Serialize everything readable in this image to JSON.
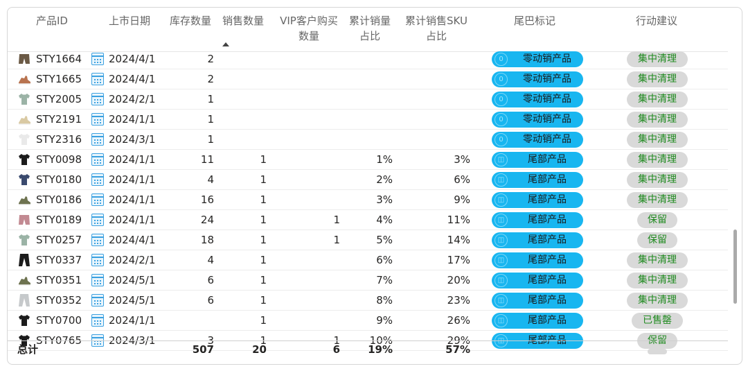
{
  "header": {
    "product_id": "产品ID",
    "launch_date": "上市日期",
    "stock_qty": "库存数量",
    "sales_qty": "销售数量",
    "vip_qty_line1": "VIP客户购买",
    "vip_qty_line2": "数量",
    "cum_sales_line1": "累计销量",
    "cum_sales_line2": "占比",
    "cum_sku_line1": "累计销售SKU",
    "cum_sku_line2": "占比",
    "tail_tag": "尾巴标记",
    "action": "行动建议"
  },
  "rows": [
    {
      "thumb": "shorts-brown",
      "id": "STY1664",
      "date": "2024/4/1",
      "stock": "2",
      "sales": "",
      "vip": "",
      "cum_sales": "",
      "cum_sku": "",
      "tag_icon": "0",
      "tag": "零动销产品",
      "action": "集中清理"
    },
    {
      "thumb": "shoe-red",
      "id": "STY1665",
      "date": "2024/4/1",
      "stock": "2",
      "sales": "",
      "vip": "",
      "cum_sales": "",
      "cum_sku": "",
      "tag_icon": "0",
      "tag": "零动销产品",
      "action": "集中清理"
    },
    {
      "thumb": "tshirt-sage",
      "id": "STY2005",
      "date": "2024/2/1",
      "stock": "1",
      "sales": "",
      "vip": "",
      "cum_sales": "",
      "cum_sku": "",
      "tag_icon": "0",
      "tag": "零动销产品",
      "action": "集中清理"
    },
    {
      "thumb": "shoe-beige",
      "id": "STY2191",
      "date": "2024/1/1",
      "stock": "1",
      "sales": "",
      "vip": "",
      "cum_sales": "",
      "cum_sku": "",
      "tag_icon": "0",
      "tag": "零动销产品",
      "action": "集中清理"
    },
    {
      "thumb": "tshirt-white",
      "id": "STY2316",
      "date": "2024/3/1",
      "stock": "1",
      "sales": "",
      "vip": "",
      "cum_sales": "",
      "cum_sku": "",
      "tag_icon": "0",
      "tag": "零动销产品",
      "action": "集中清理"
    },
    {
      "thumb": "tshirt-black",
      "id": "STY0098",
      "date": "2024/1/1",
      "stock": "11",
      "sales": "1",
      "vip": "",
      "cum_sales": "1%",
      "cum_sku": "3%",
      "tag_icon": "◫",
      "tag": "尾部产品",
      "action": "集中清理"
    },
    {
      "thumb": "tshirt-navy",
      "id": "STY0180",
      "date": "2024/1/1",
      "stock": "4",
      "sales": "1",
      "vip": "",
      "cum_sales": "2%",
      "cum_sku": "6%",
      "tag_icon": "◫",
      "tag": "尾部产品",
      "action": "集中清理"
    },
    {
      "thumb": "shoe-olive",
      "id": "STY0186",
      "date": "2024/1/1",
      "stock": "16",
      "sales": "1",
      "vip": "",
      "cum_sales": "3%",
      "cum_sku": "9%",
      "tag_icon": "◫",
      "tag": "尾部产品",
      "action": "集中清理"
    },
    {
      "thumb": "shorts-pink",
      "id": "STY0189",
      "date": "2024/1/1",
      "stock": "24",
      "sales": "1",
      "vip": "1",
      "cum_sales": "4%",
      "cum_sku": "11%",
      "tag_icon": "◫",
      "tag": "尾部产品",
      "action": "保留"
    },
    {
      "thumb": "tshirt-sage",
      "id": "STY0257",
      "date": "2024/4/1",
      "stock": "18",
      "sales": "1",
      "vip": "1",
      "cum_sales": "5%",
      "cum_sku": "14%",
      "tag_icon": "◫",
      "tag": "尾部产品",
      "action": "保留"
    },
    {
      "thumb": "pants-black",
      "id": "STY0337",
      "date": "2024/2/1",
      "stock": "4",
      "sales": "1",
      "vip": "",
      "cum_sales": "6%",
      "cum_sku": "17%",
      "tag_icon": "◫",
      "tag": "尾部产品",
      "action": "集中清理"
    },
    {
      "thumb": "shoe-olive",
      "id": "STY0351",
      "date": "2024/5/1",
      "stock": "6",
      "sales": "1",
      "vip": "",
      "cum_sales": "7%",
      "cum_sku": "20%",
      "tag_icon": "◫",
      "tag": "尾部产品",
      "action": "集中清理"
    },
    {
      "thumb": "pants-grey",
      "id": "STY0352",
      "date": "2024/5/1",
      "stock": "6",
      "sales": "1",
      "vip": "",
      "cum_sales": "8%",
      "cum_sku": "23%",
      "tag_icon": "◫",
      "tag": "尾部产品",
      "action": "集中清理"
    },
    {
      "thumb": "tshirt-black",
      "id": "STY0700",
      "date": "2024/1/1",
      "stock": "",
      "sales": "1",
      "vip": "",
      "cum_sales": "9%",
      "cum_sku": "26%",
      "tag_icon": "◫",
      "tag": "尾部产品",
      "action": "已售罄"
    },
    {
      "thumb": "tshirt-black",
      "id": "STY0765",
      "date": "2024/3/1",
      "stock": "3",
      "sales": "1",
      "vip": "1",
      "cum_sales": "10%",
      "cum_sku": "29%",
      "tag_icon": "◫",
      "tag": "尾部产品",
      "action": "保留"
    }
  ],
  "totals": {
    "label": "总计",
    "stock": "507",
    "sales": "20",
    "vip": "6",
    "cum_sales": "19%",
    "cum_sku": "57%"
  },
  "colors": {
    "tag_pill": "#18b6f0",
    "action_pill": "#d9d9d9",
    "action_text": "#1f8a1f",
    "calendar_icon": "#3aa0e0"
  }
}
